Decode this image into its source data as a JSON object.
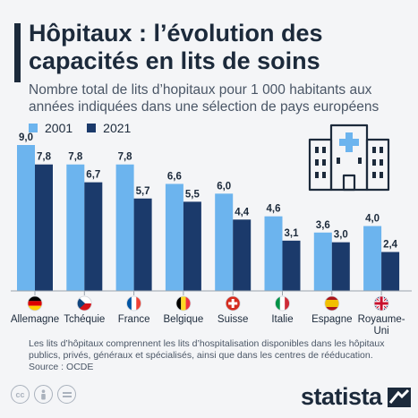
{
  "title": "Hôpitaux : l’évolution des capacités en lits de soins",
  "subtitle": "Nombre total de lits d’hopitaux pour 1 000 habitants aux années indiquées dans une sélection de pays européens",
  "footnote": "Les lits d’hôpitaux comprennent les lits d’hospitalisation disponibles dans les hôpitaux publics, privés, généraux et spécialisés, ainsi que dans les centres de rééducation.",
  "source": "Source : OCDE",
  "brand": "statista",
  "colors": {
    "series_2001": "#6cb4ee",
    "series_2021": "#1b3a6b",
    "title": "#1c2a3b"
  },
  "icons": [
    "hospital-building-icon",
    "cc-license-icon",
    "cc-attribution-icon",
    "cc-noderivs-icon",
    "statista-logo-icon"
  ],
  "chart_data": {
    "type": "bar",
    "categories": [
      "Allemagne",
      "Tchéquie",
      "France",
      "Belgique",
      "Suisse",
      "Italie",
      "Espagne",
      "Royaume-Uni"
    ],
    "category_lines": [
      [
        "Allemagne"
      ],
      [
        "Tchéquie"
      ],
      [
        "France"
      ],
      [
        "Belgique"
      ],
      [
        "Suisse"
      ],
      [
        "Italie"
      ],
      [
        "Espagne"
      ],
      [
        "Royaume-",
        "Uni"
      ]
    ],
    "flags": [
      "de",
      "cz",
      "fr",
      "be",
      "ch",
      "it",
      "es",
      "gb"
    ],
    "series": [
      {
        "name": "2001",
        "values": [
          9.0,
          7.8,
          7.8,
          6.6,
          6.0,
          4.6,
          3.6,
          4.0
        ],
        "labels": [
          "9,0",
          "7,8",
          "7,8",
          "6,6",
          "6,0",
          "4,6",
          "3,6",
          "4,0"
        ]
      },
      {
        "name": "2021",
        "values": [
          7.8,
          6.7,
          5.7,
          5.5,
          4.4,
          3.1,
          3.0,
          2.4
        ],
        "labels": [
          "7,8",
          "6,7",
          "5,7",
          "5,5",
          "4,4",
          "3,1",
          "3,0",
          "2,4"
        ]
      }
    ],
    "ylim": [
      0,
      9
    ],
    "grid": false,
    "legend": "top-left"
  }
}
